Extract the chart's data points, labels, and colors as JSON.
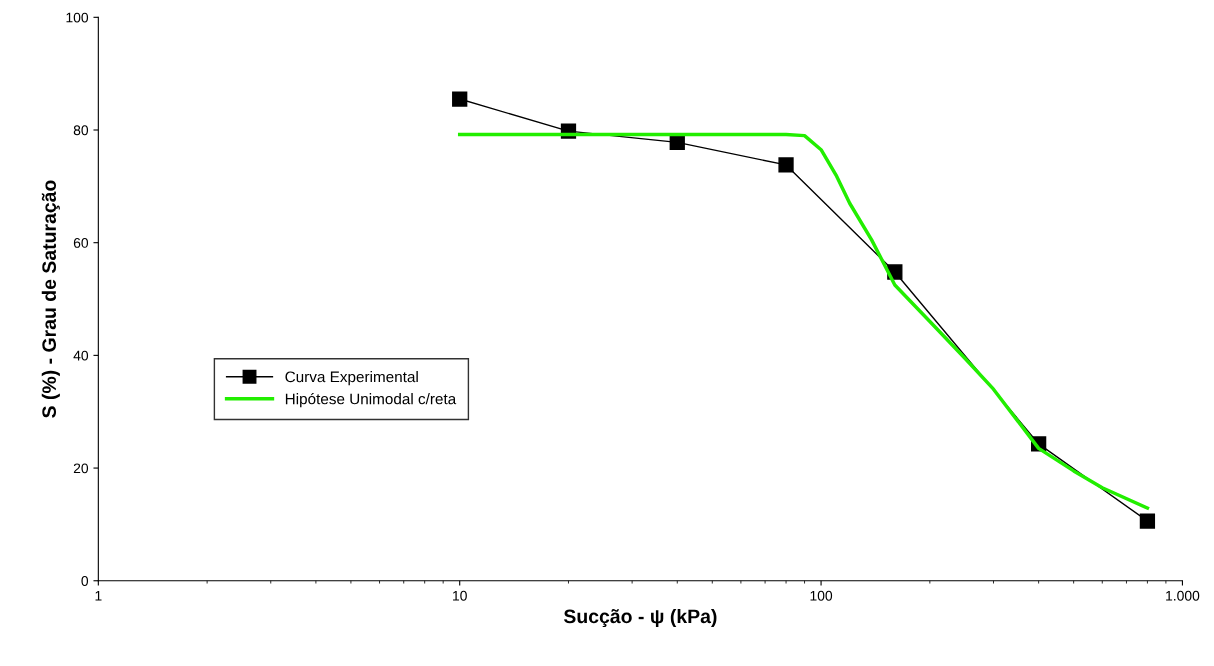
{
  "chart_data": {
    "type": "line",
    "xlabel": "Sucção - ψ (kPa)",
    "ylabel": "S (%) - Grau de Saturação",
    "log": "x",
    "xlim": [
      1,
      1000
    ],
    "xticks": [
      1,
      10,
      100,
      {
        "value": 1000,
        "label": "1.000"
      }
    ],
    "ylim": [
      0,
      100
    ],
    "yticks": [
      0,
      20,
      40,
      60,
      80,
      100
    ],
    "grid": false,
    "legend": "center left",
    "series": [
      {
        "name": "Curva Experimental",
        "color": "#000000",
        "marker": "square",
        "x": [
          10,
          20,
          40,
          80,
          160,
          400,
          800
        ],
        "values": [
          85.5,
          79.8,
          77.8,
          73.8,
          54.8,
          24.3,
          10.6
        ]
      },
      {
        "name": "Hipótese Unimodal c/reta",
        "color": "#22ee00",
        "marker": "none",
        "x": [
          10,
          50,
          80,
          90,
          100,
          110,
          120,
          138,
          160,
          200,
          250,
          300,
          400,
          500,
          600,
          800
        ],
        "values": [
          79.2,
          79.2,
          79.2,
          79.0,
          76.5,
          72,
          67,
          60.5,
          52.5,
          46,
          39.5,
          34,
          23.5,
          19.5,
          16.5,
          12.9
        ]
      }
    ]
  }
}
